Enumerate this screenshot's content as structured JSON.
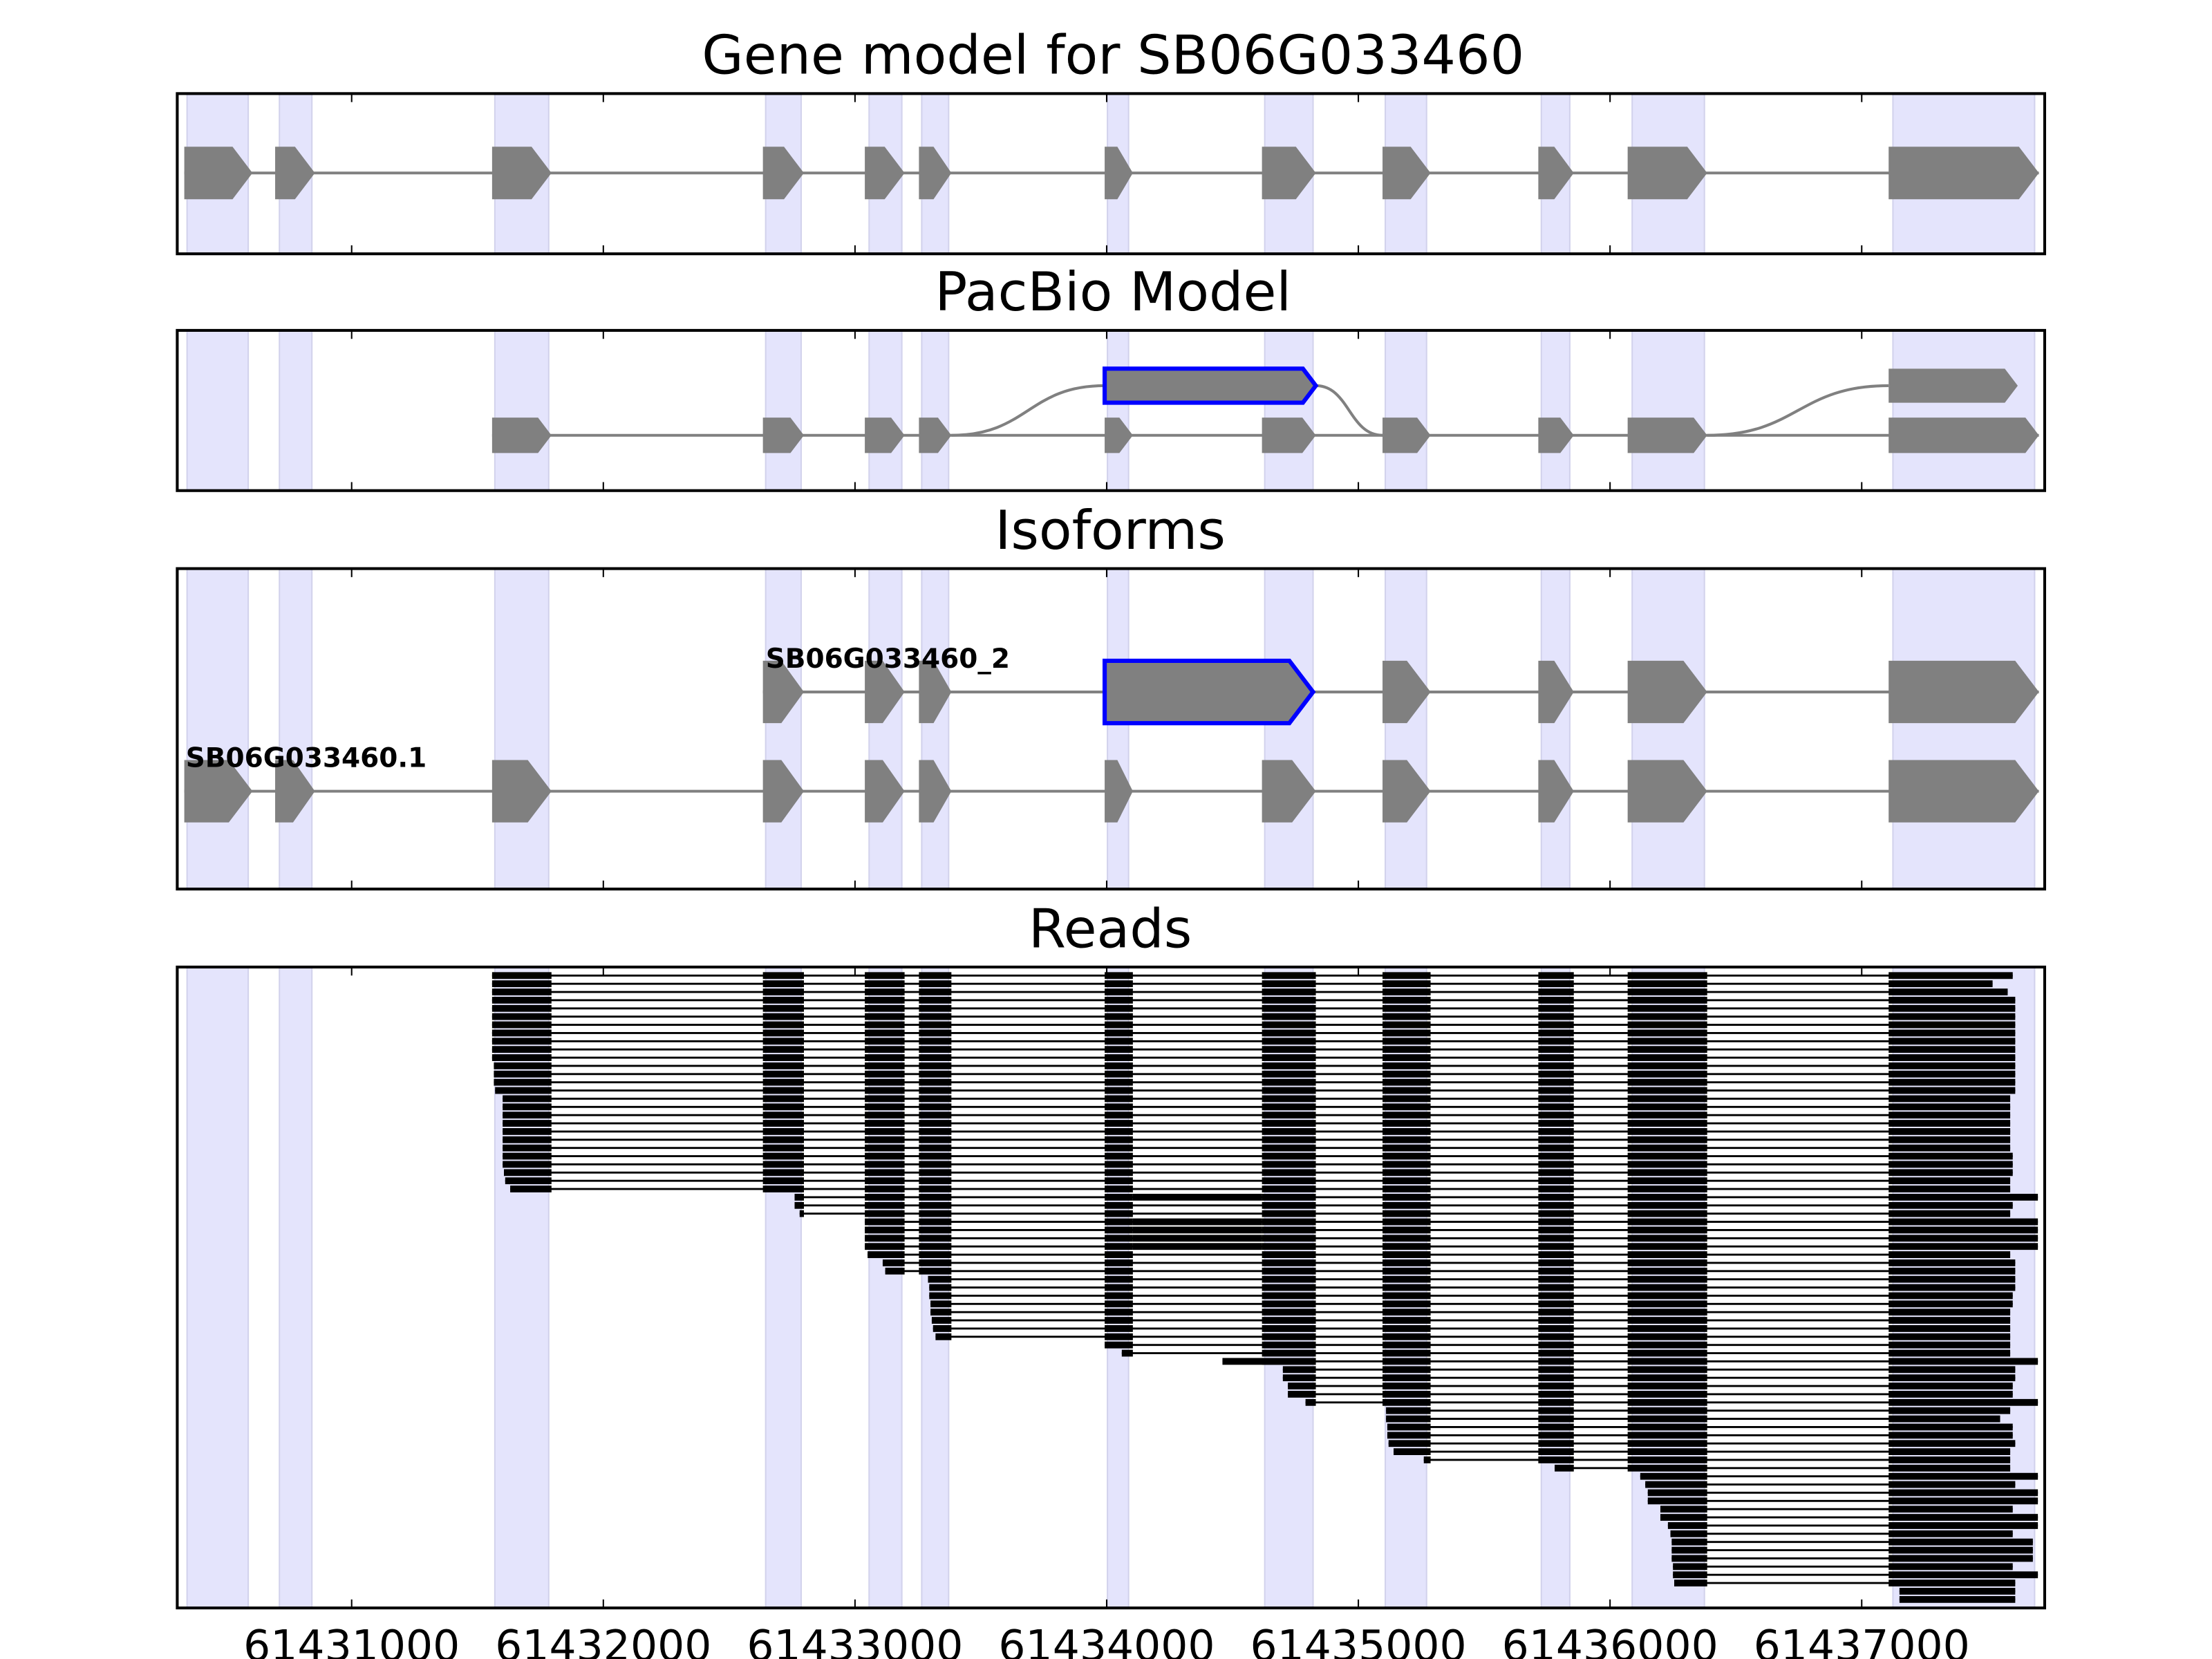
{
  "chart_data": {
    "type": "gene-track",
    "axis": {
      "xlim": [
        61430307,
        61437727
      ],
      "ticks": [
        61431000,
        61432000,
        61433000,
        61434000,
        61435000,
        61436000,
        61437000
      ],
      "tick_labels": [
        "61431000",
        "61432000",
        "61433000",
        "61434000",
        "61435000",
        "61436000",
        "61437000"
      ]
    },
    "colors": {
      "exon": "#808080",
      "highlight": "#0000ff",
      "shade": "#e4e4fc",
      "shade_edge": "#d2d2ec",
      "read": "#000000",
      "intron": "#808080"
    },
    "shaded_regions": [
      [
        61430346,
        61430589
      ],
      [
        61430713,
        61430842
      ],
      [
        61431569,
        61431783
      ],
      [
        61432645,
        61432786
      ],
      [
        61433056,
        61433186
      ],
      [
        61433265,
        61433372
      ],
      [
        61434003,
        61434087
      ],
      [
        61434628,
        61434820
      ],
      [
        61435107,
        61435271
      ],
      [
        61435727,
        61435840
      ],
      [
        61436088,
        61436375
      ],
      [
        61437124,
        61437687
      ]
    ],
    "gene_model": {
      "title": "Gene model for SB06G033460",
      "exons": [
        [
          61430335,
          61430606
        ],
        [
          61430696,
          61430854
        ],
        [
          61431558,
          61431794
        ],
        [
          61432634,
          61432797
        ],
        [
          61433039,
          61433197
        ],
        [
          61433254,
          61433383
        ],
        [
          61433992,
          61434104
        ],
        [
          61434617,
          61434831
        ],
        [
          61435096,
          61435287
        ],
        [
          61435715,
          61435856
        ],
        [
          61436070,
          61436386
        ],
        [
          61437107,
          61437704
        ]
      ]
    },
    "pacbio": {
      "title": "PacBio Model",
      "rows": [
        {
          "exons": [
            [
              61433992,
              61434831,
              1
            ],
            [
              61437107,
              61437620,
              0
            ]
          ]
        },
        {
          "exons": [
            [
              61431558,
              61431794,
              0
            ],
            [
              61432634,
              61432797,
              0
            ],
            [
              61433039,
              61433197,
              0
            ],
            [
              61433254,
              61433383,
              0
            ],
            [
              61433992,
              61434104,
              0
            ],
            [
              61434617,
              61434831,
              0
            ],
            [
              61435096,
              61435287,
              0
            ],
            [
              61435715,
              61435856,
              0
            ],
            [
              61436070,
              61436386,
              0
            ],
            [
              61437107,
              61437704,
              0
            ]
          ]
        }
      ],
      "connectors": [
        [
          61433383,
          61433992
        ],
        [
          61434831,
          61435096
        ],
        [
          61436386,
          61437107
        ]
      ]
    },
    "isoforms": {
      "title": "Isoforms",
      "transcripts": [
        {
          "name": "SB06G033460_2",
          "exons": [
            [
              61432634,
              61432797,
              0
            ],
            [
              61433039,
              61433197,
              0
            ],
            [
              61433254,
              61433383,
              0
            ],
            [
              61433992,
              61434820,
              1
            ],
            [
              61435096,
              61435287,
              0
            ],
            [
              61435715,
              61435856,
              0
            ],
            [
              61436070,
              61436386,
              0
            ],
            [
              61437107,
              61437704,
              0
            ]
          ]
        },
        {
          "name": "SB06G033460.1",
          "exons": [
            [
              61430335,
              61430606,
              0
            ],
            [
              61430696,
              61430854,
              0
            ],
            [
              61431558,
              61431794,
              0
            ],
            [
              61432634,
              61432797,
              0
            ],
            [
              61433039,
              61433197,
              0
            ],
            [
              61433254,
              61433383,
              0
            ],
            [
              61433992,
              61434104,
              0
            ],
            [
              61434617,
              61434831,
              0
            ],
            [
              61435096,
              61435287,
              0
            ],
            [
              61435715,
              61435856,
              0
            ],
            [
              61436070,
              61436386,
              0
            ],
            [
              61437107,
              61437704,
              0
            ]
          ]
        }
      ]
    },
    "reads": {
      "title": "Reads",
      "reads": [
        [
          61431558,
          61437600,
          0
        ],
        [
          61431558,
          61437520,
          0
        ],
        [
          61431558,
          61437580,
          0
        ],
        [
          61431558,
          61437610,
          0
        ],
        [
          61431558,
          61437610,
          0
        ],
        [
          61431558,
          61437610,
          0
        ],
        [
          61431558,
          61437610,
          0
        ],
        [
          61431558,
          61437610,
          0
        ],
        [
          61431558,
          61437610,
          0
        ],
        [
          61431558,
          61437610,
          0
        ],
        [
          61431558,
          61437610,
          0
        ],
        [
          61431565,
          61437610,
          0
        ],
        [
          61431565,
          61437610,
          0
        ],
        [
          61431565,
          61437610,
          0
        ],
        [
          61431570,
          61437610,
          0
        ],
        [
          61431600,
          61437590,
          0
        ],
        [
          61431600,
          61437590,
          0
        ],
        [
          61431600,
          61437590,
          0
        ],
        [
          61431600,
          61437590,
          0
        ],
        [
          61431600,
          61437590,
          0
        ],
        [
          61431600,
          61437590,
          0
        ],
        [
          61431600,
          61437590,
          0
        ],
        [
          61431600,
          61437600,
          0
        ],
        [
          61431600,
          61437600,
          0
        ],
        [
          61431605,
          61437600,
          0
        ],
        [
          61431610,
          61437590,
          0
        ],
        [
          61431630,
          61437590,
          0
        ],
        [
          61432760,
          61437700,
          1
        ],
        [
          61432760,
          61437600,
          0
        ],
        [
          61432780,
          61437590,
          0
        ],
        [
          61433039,
          61437700,
          1
        ],
        [
          61433039,
          61437700,
          1
        ],
        [
          61433039,
          61437700,
          1
        ],
        [
          61433039,
          61437700,
          1
        ],
        [
          61433050,
          61437590,
          0
        ],
        [
          61433110,
          61437610,
          0
        ],
        [
          61433120,
          61437610,
          0
        ],
        [
          61433290,
          61437610,
          0
        ],
        [
          61433295,
          61437610,
          0
        ],
        [
          61433295,
          61437600,
          0
        ],
        [
          61433300,
          61437600,
          0
        ],
        [
          61433300,
          61437590,
          0
        ],
        [
          61433305,
          61437590,
          0
        ],
        [
          61433310,
          61437590,
          0
        ],
        [
          61433320,
          61437590,
          0
        ],
        [
          61433992,
          61437590,
          0
        ],
        [
          61434060,
          61437590,
          0
        ],
        [
          61434460,
          61437700,
          0
        ],
        [
          61434700,
          61437610,
          0
        ],
        [
          61434700,
          61437610,
          0
        ],
        [
          61434720,
          61437600,
          0
        ],
        [
          61434720,
          61437600,
          0
        ],
        [
          61434790,
          61437700,
          0
        ],
        [
          61435110,
          61437590,
          0
        ],
        [
          61435110,
          61437550,
          0
        ],
        [
          61435115,
          61437600,
          0
        ],
        [
          61435115,
          61437600,
          0
        ],
        [
          61435120,
          61437610,
          0
        ],
        [
          61435140,
          61437590,
          0
        ],
        [
          61435260,
          61437590,
          0
        ],
        [
          61435780,
          61437590,
          0
        ],
        [
          61436120,
          61437700,
          0
        ],
        [
          61436140,
          61437610,
          0
        ],
        [
          61436150,
          61437700,
          0
        ],
        [
          61436150,
          61437700,
          0
        ],
        [
          61436200,
          61437600,
          0
        ],
        [
          61436200,
          61437700,
          0
        ],
        [
          61436230,
          61437700,
          0
        ],
        [
          61436240,
          61437600,
          0
        ],
        [
          61436245,
          61437680,
          0
        ],
        [
          61436245,
          61437680,
          0
        ],
        [
          61436245,
          61437680,
          0
        ],
        [
          61436250,
          61437600,
          0
        ],
        [
          61436250,
          61437700,
          0
        ],
        [
          61436255,
          61437610,
          0
        ],
        [
          61437150,
          61437610,
          0
        ],
        [
          61437150,
          61437610,
          0
        ]
      ]
    }
  }
}
